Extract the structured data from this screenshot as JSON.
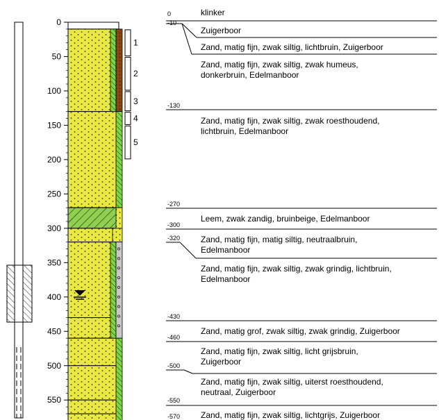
{
  "depth_axis": {
    "ticks": [
      "0",
      "50",
      "100",
      "150",
      "200",
      "250",
      "300",
      "350",
      "400",
      "450",
      "500",
      "550"
    ]
  },
  "samples": [
    "1",
    "2",
    "3",
    "4",
    "5"
  ],
  "layers": [
    {
      "from": 0,
      "to": 10,
      "depth_label": "0",
      "description": [
        "klinker"
      ],
      "lithology": "none"
    },
    {
      "from": 10,
      "to": 130,
      "depth_label": "-10",
      "description": [
        "Zuigerboor"
      ],
      "lithology": "sand"
    },
    {
      "from": 130,
      "to": 270,
      "depth_label": "-130",
      "description": [
        "Zand, matig fijn, zwak siltig, zwak roesthoudend,",
        "lichtbruin,  Edelmanboor"
      ],
      "lithology": "sand"
    },
    {
      "from": 270,
      "to": 300,
      "depth_label": "-270",
      "description": [
        "Leem, zwak zandig, bruinbeige, Edelmanboor"
      ],
      "lithology": "loam"
    },
    {
      "from": 300,
      "to": 320,
      "depth_label": "-300",
      "description": [
        "Zand, matig fijn, matig siltig, neutraalbruin,",
        "Edelmanboor"
      ],
      "lithology": "sand"
    },
    {
      "from": 320,
      "to": 430,
      "depth_label": "-320",
      "description": [
        "Zand, matig fijn, zwak siltig, zwak grindig, lichtbruin,",
        "Edelmanboor"
      ],
      "lithology": "sand"
    },
    {
      "from": 430,
      "to": 460,
      "depth_label": "-430",
      "description": [
        "Zand, matig grof, zwak siltig, zwak grindig, Zuigerboor"
      ],
      "lithology": "sand"
    },
    {
      "from": 460,
      "to": 500,
      "depth_label": "-460",
      "description": [
        "Zand, matig fijn, zwak siltig, licht grijsbruin,",
        "Zuigerboor"
      ],
      "lithology": "sand"
    },
    {
      "from": 500,
      "to": 550,
      "depth_label": "-500",
      "description": [
        "Zand, matig fijn, zwak siltig, uiterst roesthoudend,",
        "neutraal, Zuigerboor"
      ],
      "lithology": "sand"
    },
    {
      "from": 550,
      "to": 570,
      "depth_label": "-550",
      "description": [],
      "lithology": "sand"
    },
    {
      "from": 570,
      "to": 580,
      "depth_label": "-570",
      "description": [
        "Zand, matig fijn, zwak siltig, lichtgrijs, Zuigerboor"
      ],
      "lithology": "sand"
    }
  ],
  "layer_text_rows": [
    {
      "label_index": 0,
      "line1": "klinker",
      "line2": ""
    },
    {
      "label_index": 1,
      "line1": "Zuigerboor",
      "line2": ""
    },
    {
      "label_index": 1,
      "line1": "Zand, matig fijn, zwak siltig, lichtbruin, Zuigerboor",
      "line2": ""
    },
    {
      "label_index": 1,
      "line1": "Zand, matig fijn, zwak siltig, zwak humeus,",
      "line2": "donkerbruin, Edelmanboor"
    }
  ],
  "colors": {
    "sand": "#e8e840",
    "loam": "#a6e34a",
    "brown": "#8b4513",
    "gray": "#c8c8c8",
    "green": "#7dd64a"
  }
}
